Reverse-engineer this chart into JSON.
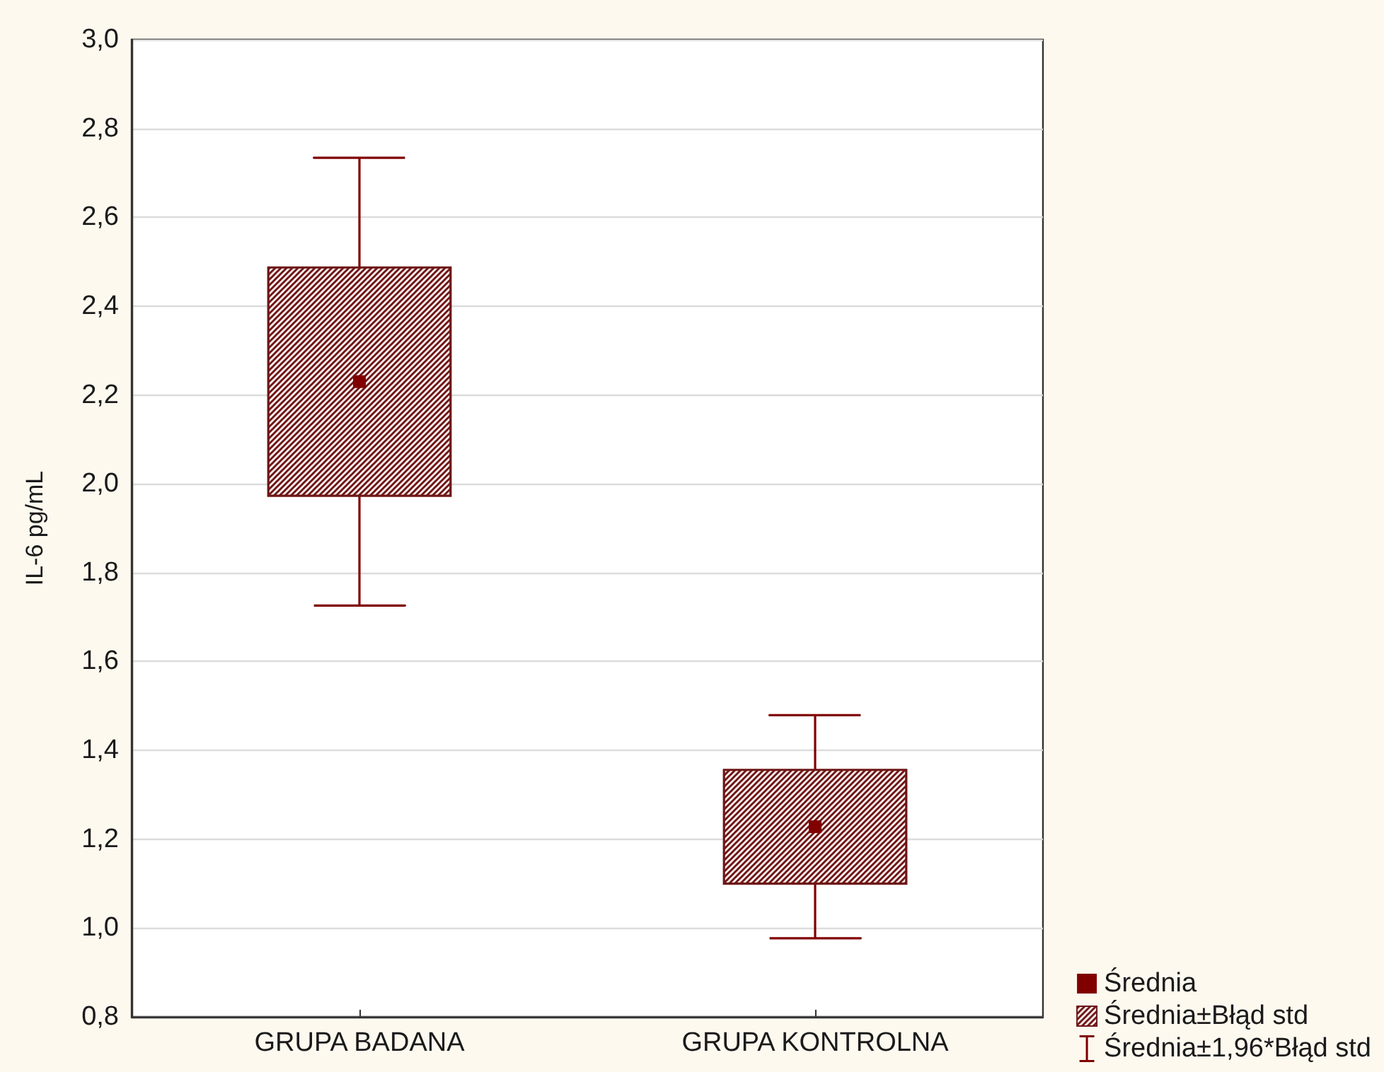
{
  "chart_data": {
    "type": "bar",
    "categories": [
      "GRUPA BADANA",
      "GRUPA KONTROLNA"
    ],
    "ylabel": "IL-6 pg/mL",
    "ylim": [
      0.8,
      3.0
    ],
    "yticks": [
      {
        "value": 0.8,
        "label": "0,8"
      },
      {
        "value": 1.0,
        "label": "1,0"
      },
      {
        "value": 1.2,
        "label": "1,2"
      },
      {
        "value": 1.4,
        "label": "1,4"
      },
      {
        "value": 1.6,
        "label": "1,6"
      },
      {
        "value": 1.8,
        "label": "1,8"
      },
      {
        "value": 2.0,
        "label": "2,0"
      },
      {
        "value": 2.2,
        "label": "2,2"
      },
      {
        "value": 2.4,
        "label": "2,4"
      },
      {
        "value": 2.6,
        "label": "2,6"
      },
      {
        "value": 2.8,
        "label": "2,8"
      },
      {
        "value": 3.0,
        "label": "3,0"
      }
    ],
    "grid": "y",
    "legend": "bottom right",
    "marker": "square",
    "series": [
      {
        "name": "Średnia",
        "type": "scatter",
        "color": "#800000",
        "x": [
          "GRUPA BADANA",
          "GRUPA KONTROLNA"
        ],
        "values": [
          2.23,
          1.228
        ],
        "errors": [
          0.504,
          0.251
        ]
      },
      {
        "name": "Średnia±Błąd std",
        "color": "#6e1616",
        "base": [
          1.973,
          1.1
        ],
        "values": [
          0.514,
          0.256
        ]
      },
      {
        "name": "Średnia±1,96*Błąd std",
        "type": "scatter",
        "marker": "none",
        "color": "#800000",
        "x": [
          "GRUPA BADANA",
          "GRUPA KONTROLNA"
        ],
        "values": [
          null,
          null
        ]
      }
    ]
  }
}
